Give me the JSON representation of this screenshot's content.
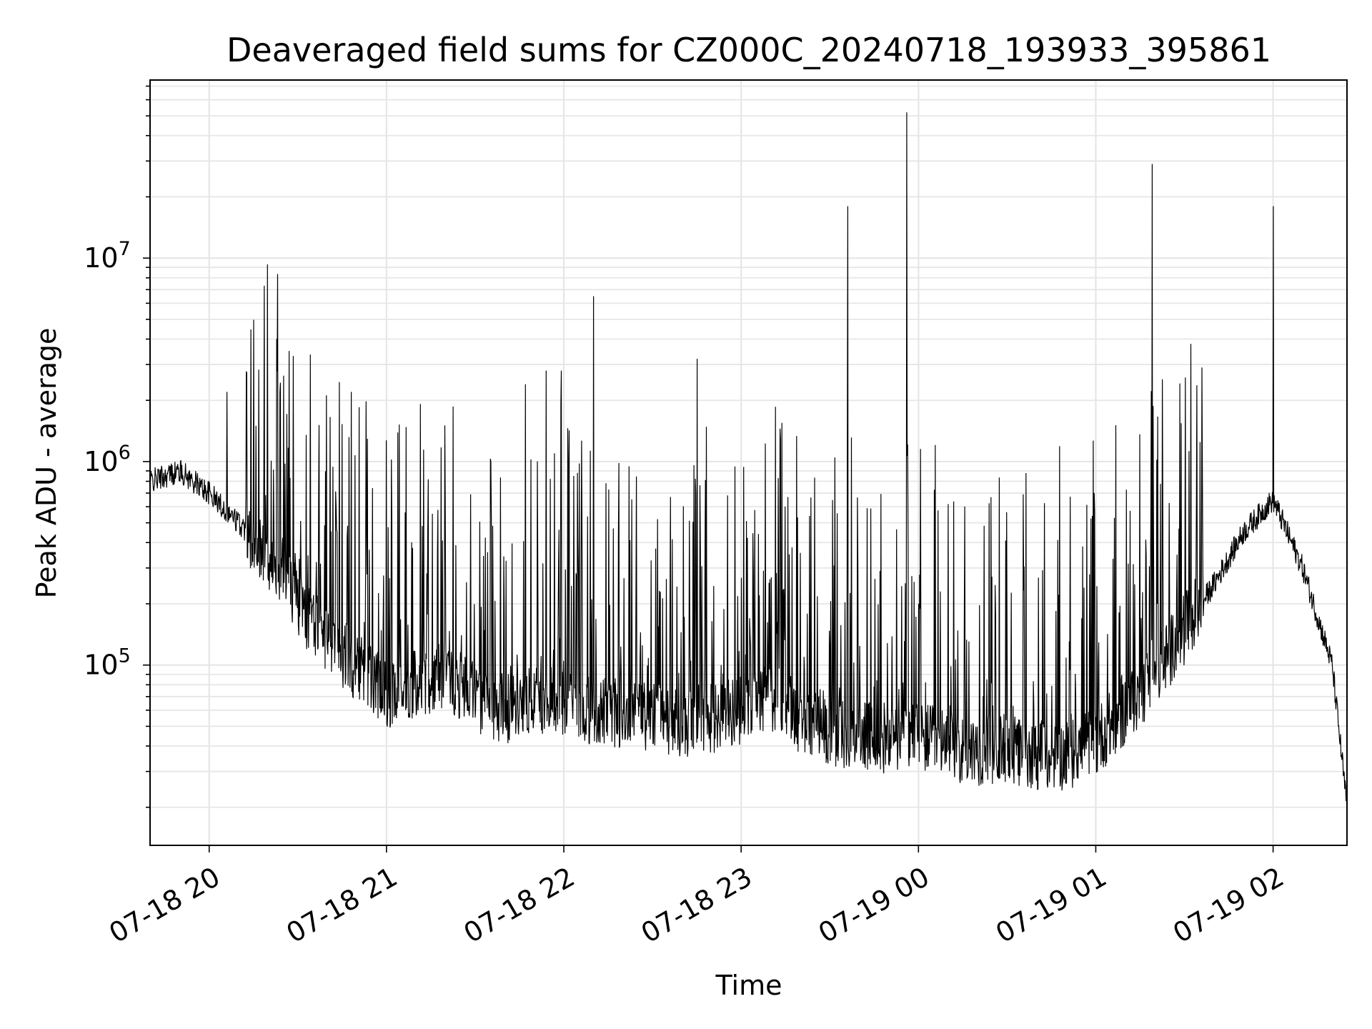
{
  "chart_data": {
    "type": "line",
    "title": "Deaveraged field sums for CZ000C_20240718_193933_395861",
    "xlabel": "Time",
    "ylabel": "Peak ADU - average",
    "yscale": "log",
    "ylim": [
      13000,
      75000000
    ],
    "xlim": [
      "2024-07-18 19:40",
      "2024-07-19 02:25"
    ],
    "grid": true,
    "line_color": "#000000",
    "x_ticks": [
      {
        "value": "2024-07-18 20:00",
        "label": "07-18 20"
      },
      {
        "value": "2024-07-18 21:00",
        "label": "07-18 21"
      },
      {
        "value": "2024-07-18 22:00",
        "label": "07-18 22"
      },
      {
        "value": "2024-07-18 23:00",
        "label": "07-18 23"
      },
      {
        "value": "2024-07-19 00:00",
        "label": "07-19 00"
      },
      {
        "value": "2024-07-19 01:00",
        "label": "07-19 01"
      },
      {
        "value": "2024-07-19 02:00",
        "label": "07-19 02"
      }
    ],
    "y_ticks": [
      {
        "value": 100000,
        "base": "10",
        "exp": "5"
      },
      {
        "value": 1000000,
        "base": "10",
        "exp": "6"
      },
      {
        "value": 10000000,
        "base": "10",
        "exp": "7"
      }
    ],
    "series": [
      {
        "x": [
          "2024-07-18 19:40",
          "2024-07-18 19:50",
          "2024-07-18 20:00",
          "2024-07-18 20:10",
          "2024-07-18 20:20",
          "2024-07-18 20:30",
          "2024-07-18 20:40",
          "2024-07-18 20:50",
          "2024-07-18 21:00",
          "2024-07-18 21:10",
          "2024-07-18 21:20",
          "2024-07-18 21:30",
          "2024-07-18 21:40",
          "2024-07-18 21:50",
          "2024-07-18 22:00",
          "2024-07-18 22:10",
          "2024-07-18 22:20",
          "2024-07-18 22:30",
          "2024-07-18 22:40",
          "2024-07-18 22:50",
          "2024-07-18 23:00",
          "2024-07-18 23:10",
          "2024-07-18 23:20",
          "2024-07-18 23:30",
          "2024-07-18 23:40",
          "2024-07-18 23:50",
          "2024-07-19 00:00",
          "2024-07-19 00:10",
          "2024-07-19 00:20",
          "2024-07-19 00:30",
          "2024-07-19 00:40",
          "2024-07-19 00:50",
          "2024-07-19 01:00",
          "2024-07-19 01:10",
          "2024-07-19 01:20",
          "2024-07-19 01:30",
          "2024-07-19 01:40",
          "2024-07-19 01:50",
          "2024-07-19 02:00",
          "2024-07-19 02:10",
          "2024-07-19 02:20",
          "2024-07-19 02:25"
        ],
        "y": [
          800000,
          900000,
          700000,
          500000,
          350000,
          200000,
          130000,
          100000,
          70000,
          80000,
          90000,
          70000,
          60000,
          70000,
          65000,
          60000,
          58000,
          55000,
          52000,
          55000,
          60000,
          70000,
          55000,
          48000,
          45000,
          42000,
          45000,
          40000,
          38000,
          38000,
          36000,
          36000,
          42000,
          60000,
          90000,
          150000,
          250000,
          450000,
          650000,
          300000,
          100000,
          20000
        ]
      }
    ],
    "spikes": [
      {
        "x": "2024-07-18 20:06",
        "y": 2200000
      },
      {
        "x": "2024-07-18 20:48",
        "y": 2200000
      },
      {
        "x": "2024-07-18 21:47",
        "y": 2400000
      },
      {
        "x": "2024-07-18 21:54",
        "y": 2800000
      },
      {
        "x": "2024-07-18 21:59",
        "y": 2800000
      },
      {
        "x": "2024-07-18 22:10",
        "y": 6500000
      },
      {
        "x": "2024-07-18 22:45",
        "y": 3200000
      },
      {
        "x": "2024-07-18 23:36",
        "y": 18000000
      },
      {
        "x": "2024-07-18 23:56",
        "y": 52000000
      },
      {
        "x": "2024-07-19 01:19",
        "y": 29000000
      },
      {
        "x": "2024-07-19 02:00",
        "y": 18000000
      }
    ]
  }
}
